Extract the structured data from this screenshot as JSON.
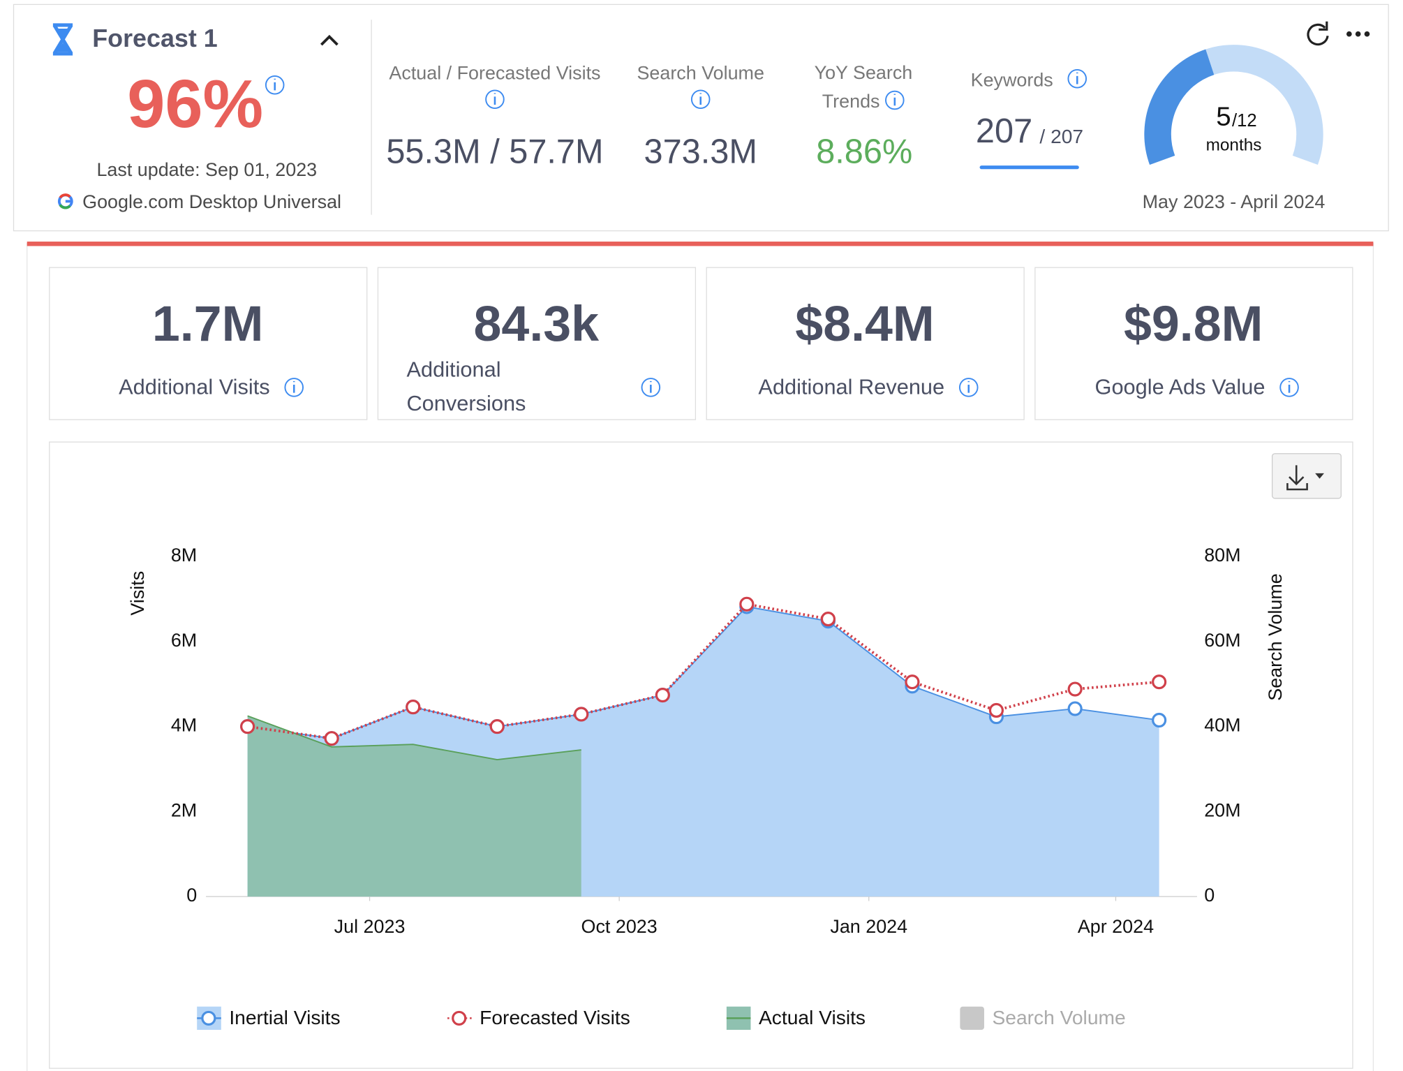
{
  "header": {
    "title": "Forecast 1",
    "score": "96%",
    "last_update": "Last update: Sep 01, 2023",
    "engine": "Google.com Desktop Universal",
    "metrics": [
      {
        "label": "Actual / Forecasted Visits",
        "value": "55.3M / 57.7M"
      },
      {
        "label": "Search Volume",
        "value": "373.3M"
      },
      {
        "label": "YoY Search Trends",
        "value": "8.86%"
      }
    ],
    "keywords": {
      "label": "Keywords",
      "value": "207",
      "total": "/ 207"
    },
    "gauge": {
      "value": 5,
      "max": 12,
      "max_label": "/12",
      "unit": "months",
      "range": "May 2023 - April 2024"
    }
  },
  "kpis": [
    {
      "value": "1.7M",
      "label": "Additional Visits"
    },
    {
      "value": "84.3k",
      "label": "Additional Conversions"
    },
    {
      "value": "$8.4M",
      "label": "Additional Revenue"
    },
    {
      "value": "$9.8M",
      "label": "Google Ads Value"
    }
  ],
  "chart_data": {
    "type": "area",
    "ylabel": "Visits",
    "y2label": "Search Volume",
    "x": [
      "2023-05",
      "2023-06",
      "2023-07",
      "2023-08",
      "2023-09",
      "2023-10",
      "2023-11",
      "2023-12",
      "2024-01",
      "2024-02",
      "2024-03",
      "2024-04"
    ],
    "xticks": [
      {
        "value": "2023-07",
        "label": "Jul 2023"
      },
      {
        "value": "2023-10",
        "label": "Oct 2023"
      },
      {
        "value": "2024-01",
        "label": "Jan 2024"
      },
      {
        "value": "2024-04",
        "label": "Apr 2024"
      }
    ],
    "ylim": [
      0,
      8000000
    ],
    "yticks": [
      0,
      {
        "value": 2000000,
        "label": "2M"
      },
      {
        "value": 4000000,
        "label": "4M"
      },
      {
        "value": 6000000,
        "label": "6M"
      },
      {
        "value": 8000000,
        "label": "8M"
      }
    ],
    "y2lim": [
      0,
      80000000
    ],
    "y2ticks": [
      0,
      {
        "value": 20000000,
        "label": "20M"
      },
      {
        "value": 40000000,
        "label": "40M"
      },
      {
        "value": 60000000,
        "label": "60M"
      },
      {
        "value": 80000000,
        "label": "80M"
      }
    ],
    "series": [
      {
        "name": "Inertial Visits",
        "color": "#4a90e2",
        "fill": "#b5d5f7",
        "values": [
          4000000,
          3720000,
          4460000,
          4000000,
          4290000,
          4740000,
          6820000,
          6480000,
          4950000,
          4230000,
          4420000,
          4150000
        ]
      },
      {
        "name": "Forecasted Visits",
        "color": "#d0404a",
        "dotted": true,
        "values": [
          4000000,
          3720000,
          4460000,
          4000000,
          4290000,
          4740000,
          6880000,
          6530000,
          5050000,
          4380000,
          4880000,
          5050000
        ]
      },
      {
        "name": "Actual Visits",
        "color": "#5aa05a",
        "fill": "#8fc1b0",
        "values": [
          4250000,
          3520000,
          3580000,
          3220000,
          3450000,
          null,
          null,
          null,
          null,
          null,
          null,
          null
        ]
      },
      {
        "name": "Search Volume",
        "color": "#c8c8c8",
        "axis": "y2",
        "visible": false,
        "values": [
          null,
          null,
          null,
          null,
          null,
          null,
          null,
          null,
          null,
          null,
          null,
          null
        ]
      }
    ]
  }
}
